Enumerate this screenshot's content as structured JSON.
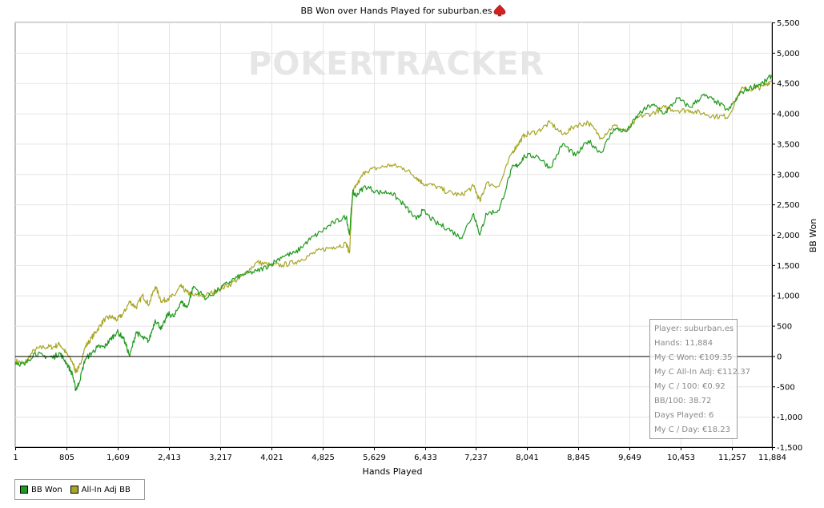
{
  "title": "BB Won over Hands Played for suburban.es",
  "watermark": "POKERTRACKER",
  "colors": {
    "bb_won": "#209a1e",
    "allin_adj": "#a8a625",
    "grid": "#e4e4e4",
    "zero": "#000000",
    "icon": "#d62020"
  },
  "chart_data": {
    "type": "line",
    "title": "BB Won over Hands Played for suburban.es",
    "xlabel": "Hands Played",
    "ylabel": "BB Won",
    "xlim": [
      1,
      11884
    ],
    "ylim": [
      -1500,
      5500
    ],
    "x_ticks": [
      1,
      805,
      1609,
      2413,
      3217,
      4021,
      4825,
      5629,
      6433,
      7237,
      8041,
      8845,
      9649,
      10453,
      11257,
      11884
    ],
    "x_tick_labels": [
      "1",
      "805",
      "1,609",
      "2,413",
      "3,217",
      "4,021",
      "4,825",
      "5,629",
      "6,433",
      "7,237",
      "8,041",
      "8,845",
      "9,649",
      "10,453",
      "11,257",
      "11,884"
    ],
    "y_ticks": [
      -1500,
      -1000,
      -500,
      0,
      500,
      1000,
      1500,
      2000,
      2500,
      3000,
      3500,
      4000,
      4500,
      5000,
      5500
    ],
    "y_tick_labels": [
      "-1,500",
      "-1,000",
      "-500",
      "0",
      "500",
      "1,000",
      "1,500",
      "2,000",
      "2,500",
      "3,000",
      "3,500",
      "4,000",
      "4,500",
      "5,000",
      "5,500"
    ],
    "grid": true,
    "legend_position": "bottom-left",
    "series": [
      {
        "name": "BB Won",
        "x": [
          1,
          150,
          300,
          450,
          600,
          700,
          800,
          900,
          950,
          1000,
          1100,
          1200,
          1300,
          1400,
          1500,
          1600,
          1700,
          1800,
          1900,
          2000,
          2100,
          2200,
          2300,
          2400,
          2500,
          2600,
          2700,
          2800,
          3000,
          3200,
          3400,
          3600,
          3800,
          4000,
          4200,
          4400,
          4600,
          4800,
          5000,
          5200,
          5250,
          5300,
          5350,
          5500,
          5700,
          5900,
          6100,
          6300,
          6400,
          6600,
          6800,
          7000,
          7200,
          7300,
          7400,
          7600,
          7800,
          7900,
          8000,
          8200,
          8400,
          8600,
          8800,
          9000,
          9200,
          9400,
          9600,
          9800,
          10000,
          10200,
          10400,
          10600,
          10800,
          11000,
          11200,
          11400,
          11600,
          11750,
          11884
        ],
        "y": [
          -100,
          -150,
          50,
          0,
          -20,
          50,
          -100,
          -300,
          -550,
          -450,
          -50,
          50,
          150,
          150,
          280,
          400,
          300,
          0,
          400,
          300,
          250,
          600,
          450,
          700,
          650,
          900,
          800,
          1150,
          950,
          1100,
          1250,
          1350,
          1400,
          1500,
          1650,
          1700,
          1900,
          2050,
          2200,
          2300,
          2000,
          2700,
          2650,
          2800,
          2700,
          2700,
          2500,
          2250,
          2400,
          2200,
          2100,
          1950,
          2350,
          2000,
          2350,
          2400,
          3100,
          3150,
          3300,
          3300,
          3100,
          3500,
          3300,
          3550,
          3350,
          3750,
          3700,
          4000,
          4150,
          4000,
          4250,
          4100,
          4300,
          4200,
          4050,
          4350,
          4450,
          4500,
          4630
        ]
      },
      {
        "name": "All-In Adj BB",
        "x": [
          1,
          150,
          300,
          450,
          600,
          700,
          800,
          900,
          950,
          1000,
          1100,
          1200,
          1300,
          1400,
          1500,
          1600,
          1700,
          1800,
          1900,
          2000,
          2100,
          2200,
          2300,
          2400,
          2500,
          2600,
          2700,
          2800,
          3000,
          3200,
          3400,
          3600,
          3800,
          4000,
          4200,
          4400,
          4600,
          4800,
          5000,
          5200,
          5250,
          5300,
          5350,
          5500,
          5700,
          5900,
          6100,
          6300,
          6400,
          6600,
          6800,
          7000,
          7200,
          7300,
          7400,
          7600,
          7800,
          7900,
          8000,
          8200,
          8400,
          8600,
          8800,
          9000,
          9200,
          9400,
          9600,
          9800,
          10000,
          10200,
          10400,
          10600,
          10800,
          11000,
          11200,
          11400,
          11600,
          11750,
          11884
        ],
        "y": [
          -80,
          -120,
          100,
          150,
          150,
          200,
          50,
          -100,
          -250,
          -200,
          150,
          300,
          450,
          600,
          650,
          600,
          700,
          900,
          800,
          1000,
          850,
          1150,
          900,
          950,
          1000,
          1150,
          1050,
          1000,
          1000,
          1100,
          1200,
          1350,
          1550,
          1500,
          1500,
          1550,
          1650,
          1750,
          1800,
          1850,
          1700,
          2700,
          2800,
          3050,
          3100,
          3150,
          3100,
          2950,
          2850,
          2800,
          2700,
          2650,
          2800,
          2550,
          2850,
          2800,
          3350,
          3500,
          3650,
          3700,
          3850,
          3650,
          3800,
          3850,
          3600,
          3800,
          3700,
          3950,
          4000,
          4100,
          4050,
          4050,
          4000,
          3950,
          3950,
          4400,
          4400,
          4450,
          4550
        ]
      }
    ],
    "stats_lines": [
      "Player: suburban.es",
      "Hands: 11,884",
      "My C Won: €109.35",
      "My C All-In Adj: €112.37",
      "My C / 100: €0.92",
      "BB/100: 38.72",
      "Days Played: 6",
      "My C / Day: €18.23"
    ]
  }
}
